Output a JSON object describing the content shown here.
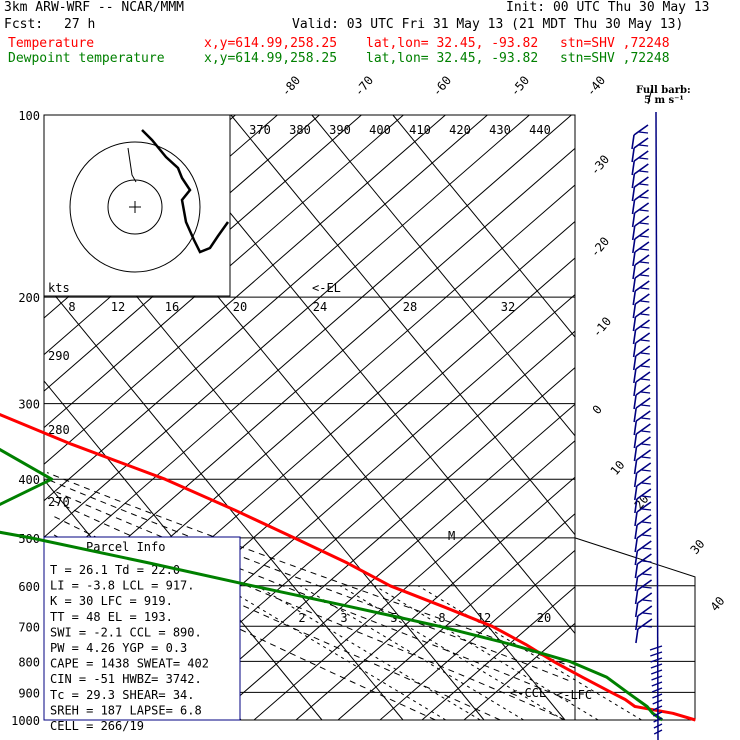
{
  "header": {
    "model": "3km ARW-WRF -- NCAR/MMM",
    "init": "Init: 00 UTC Thu 30 May 13",
    "fcst_label": "Fcst:",
    "fcst_value": "27 h",
    "valid": "Valid: 03 UTC Fri 31 May 13 (21 MDT Thu 30 May 13)",
    "temp_label": "Temperature",
    "dew_label": "Dewpoint temperature",
    "xy": "x,y=614.99,258.25",
    "latlon": "lat,lon= 32.45, -93.82",
    "stn": "stn=SHV ,72248",
    "barb_title": "Full barb:",
    "barb_unit": "5 m s⁻¹"
  },
  "colors": {
    "temperature": "#ff0000",
    "dewpoint": "#008000",
    "barbs": "#000080"
  },
  "chart_data": {
    "type": "line",
    "title": "",
    "ylabel": "",
    "xlabel": "",
    "pressure_levels": [
      100,
      200,
      300,
      400,
      500,
      600,
      700,
      800,
      900,
      1000
    ],
    "series": [
      {
        "name": "Temperature",
        "points": [
          [
            1000,
            26.1
          ],
          [
            975,
            24.0
          ],
          [
            950,
            20.0
          ],
          [
            925,
            19.5
          ],
          [
            900,
            18.5
          ],
          [
            850,
            16.5
          ],
          [
            800,
            14.5
          ],
          [
            750,
            12.8
          ],
          [
            700,
            10.5
          ],
          [
            650,
            6.5
          ],
          [
            600,
            2.0
          ],
          [
            550,
            -1.0
          ],
          [
            500,
            -5.0
          ],
          [
            450,
            -9.5
          ],
          [
            400,
            -15.0
          ],
          [
            350,
            -23.0
          ],
          [
            300,
            -31.0
          ],
          [
            250,
            -40.0
          ],
          [
            200,
            -50.0
          ],
          [
            175,
            -55.5
          ],
          [
            150,
            -61.0
          ],
          [
            135,
            -63.5
          ],
          [
            120,
            -62.0
          ],
          [
            110,
            -63.0
          ],
          [
            100,
            -66.0
          ]
        ]
      },
      {
        "name": "Dewpoint temperature",
        "points": [
          [
            1000,
            22.0
          ],
          [
            975,
            21.5
          ],
          [
            950,
            21.5
          ],
          [
            925,
            21.0
          ],
          [
            900,
            20.5
          ],
          [
            850,
            19.5
          ],
          [
            800,
            16.5
          ],
          [
            750,
            11.0
          ],
          [
            700,
            4.0
          ],
          [
            650,
            -5.0
          ],
          [
            600,
            -15.0
          ],
          [
            550,
            -25.5
          ],
          [
            500,
            -37.5
          ],
          [
            470,
            -47.0
          ],
          [
            450,
            -40.0
          ],
          [
            400,
            -29.0
          ],
          [
            350,
            -33.0
          ],
          [
            300,
            -36.5
          ],
          [
            250,
            -44.0
          ],
          [
            200,
            -56.0
          ],
          [
            160,
            -65.0
          ],
          [
            130,
            -72.0
          ],
          [
            110,
            -78.0
          ],
          [
            100,
            -80.0
          ]
        ]
      }
    ],
    "isotherm_labels": [
      "-80",
      "-70",
      "-60",
      "-50",
      "-40",
      "-30",
      "-20",
      "-10",
      "0",
      "10",
      "20",
      "30",
      "40"
    ],
    "theta_labels": [
      "370",
      "380",
      "390",
      "400",
      "410",
      "420",
      "430",
      "440"
    ],
    "mixing_ratio_labels": [
      "2",
      "3",
      "5",
      "8",
      "12",
      "20"
    ],
    "hodograph": {
      "unit": "kts",
      "speed_labels": [
        "8",
        "12",
        "16",
        "20",
        "24",
        "28",
        "32"
      ]
    },
    "markers": {
      "el": "<-EL",
      "ccl": "<-CCL",
      "lfc": "<-LFC",
      "m": "M"
    },
    "left_labels": [
      "290",
      "280",
      "270"
    ]
  },
  "indices": {
    "title": "Parcel Info",
    "rows": [
      "T  =    26.1  Td =  22.0",
      "LI =    -3.8  LCL =  917.",
      "K  =      30  LFC = 919.",
      "TT =      48  EL  =  193.",
      "SWI =   -2.1  CCL =  890.",
      "PW =    4.26  YGP =   0.3",
      "CAPE =  1438  SWEAT=  402",
      "CIN =    -51  HWBZ= 3742.",
      "Tc =    29.3  SHEAR=  34.",
      "SREH =   187  LAPSE=  6.8",
      "CELL = 266/19"
    ]
  }
}
